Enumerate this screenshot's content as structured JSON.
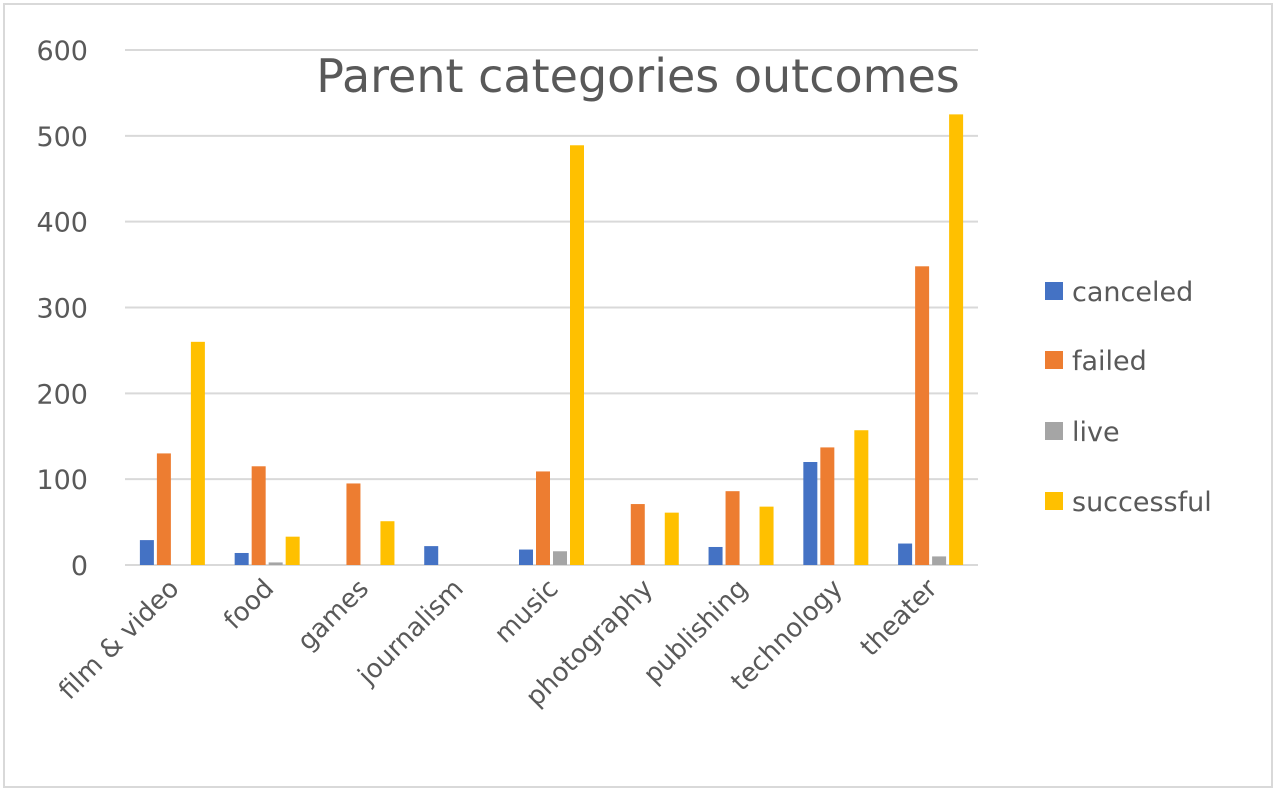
{
  "chart_data": {
    "type": "bar",
    "title": "Parent categories outcomes",
    "categories": [
      "film & video",
      "food",
      "games",
      "journalism",
      "music",
      "photography",
      "publishing",
      "technology",
      "theater"
    ],
    "series": [
      {
        "name": "canceled",
        "color": "#4472C4",
        "values": [
          29,
          14,
          0,
          22,
          18,
          0,
          21,
          120,
          25
        ]
      },
      {
        "name": "failed",
        "color": "#ED7D31",
        "values": [
          130,
          115,
          95,
          0,
          109,
          71,
          86,
          137,
          348
        ]
      },
      {
        "name": "live",
        "color": "#A5A5A5",
        "values": [
          0,
          3,
          0,
          0,
          16,
          0,
          0,
          0,
          10
        ]
      },
      {
        "name": "successful",
        "color": "#FFC000",
        "values": [
          260,
          33,
          51,
          0,
          489,
          61,
          68,
          157,
          525
        ]
      }
    ],
    "ylim": [
      0,
      600
    ],
    "yticks": [
      0,
      100,
      200,
      300,
      400,
      500,
      600
    ],
    "grid": true,
    "legend": "right",
    "xlabel": "",
    "ylabel": ""
  }
}
